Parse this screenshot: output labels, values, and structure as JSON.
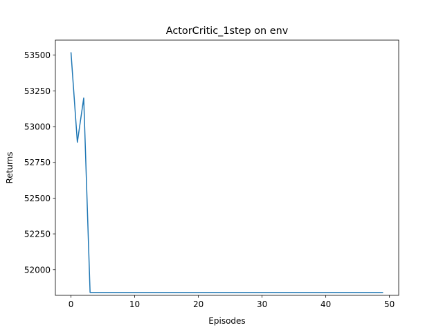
{
  "chart_data": {
    "type": "line",
    "title": "ActorCritic_1step on env",
    "xlabel": "Episodes",
    "ylabel": "Returns",
    "xlim": [
      -2.45,
      51.45
    ],
    "ylim": [
      51820,
      53605
    ],
    "xticks": [
      0,
      10,
      20,
      30,
      40,
      50
    ],
    "yticks": [
      52000,
      52250,
      52500,
      52750,
      53000,
      53250,
      53500
    ],
    "grid": false,
    "series_color": "#1f77b4",
    "series": [
      {
        "values": [
          [
            0,
            53520
          ],
          [
            1,
            52890
          ],
          [
            2,
            53200
          ],
          [
            3,
            51840
          ],
          [
            4,
            51840
          ],
          [
            5,
            51840
          ],
          [
            6,
            51840
          ],
          [
            7,
            51840
          ],
          [
            8,
            51840
          ],
          [
            9,
            51840
          ],
          [
            10,
            51840
          ],
          [
            11,
            51840
          ],
          [
            12,
            51840
          ],
          [
            13,
            51840
          ],
          [
            14,
            51840
          ],
          [
            15,
            51840
          ],
          [
            16,
            51840
          ],
          [
            17,
            51840
          ],
          [
            18,
            51840
          ],
          [
            19,
            51840
          ],
          [
            20,
            51840
          ],
          [
            21,
            51840
          ],
          [
            22,
            51840
          ],
          [
            23,
            51840
          ],
          [
            24,
            51840
          ],
          [
            25,
            51840
          ],
          [
            26,
            51840
          ],
          [
            27,
            51840
          ],
          [
            28,
            51840
          ],
          [
            29,
            51840
          ],
          [
            30,
            51840
          ],
          [
            31,
            51840
          ],
          [
            32,
            51840
          ],
          [
            33,
            51840
          ],
          [
            34,
            51840
          ],
          [
            35,
            51840
          ],
          [
            36,
            51840
          ],
          [
            37,
            51840
          ],
          [
            38,
            51840
          ],
          [
            39,
            51840
          ],
          [
            40,
            51840
          ],
          [
            41,
            51840
          ],
          [
            42,
            51840
          ],
          [
            43,
            51840
          ],
          [
            44,
            51840
          ],
          [
            45,
            51840
          ],
          [
            46,
            51840
          ],
          [
            47,
            51840
          ],
          [
            48,
            51840
          ],
          [
            49,
            51840
          ]
        ]
      }
    ]
  }
}
